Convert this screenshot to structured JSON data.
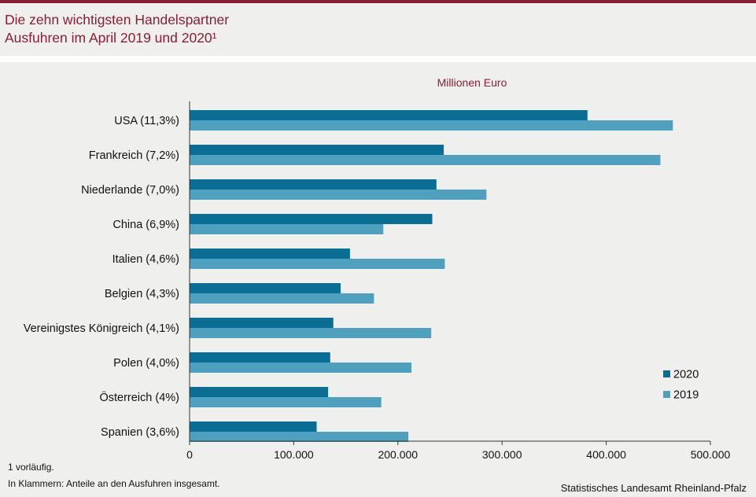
{
  "header": {
    "title_line1": "Die zehn wichtigsten Handelspartner",
    "title_line2": "Ausfuhren im April 2019 und 2020¹"
  },
  "colors": {
    "brand": "#8b1d36",
    "series_2020": "#0a6e94",
    "series_2019": "#4fa0bf",
    "panel_background": "#efefed"
  },
  "chart_data": {
    "type": "bar",
    "orientation": "horizontal",
    "unit_label": "Millionen  Euro",
    "categories": [
      "USA (11,3%)",
      "Frankreich (7,2%)",
      "Niederlande (7,0%)",
      "China (6,9%)",
      "Italien (4,6%)",
      "Belgien (4,3%)",
      "Vereinigstes Königreich (4,1%)",
      "Polen (4,0%)",
      "Österreich (4%)",
      "Spanien (3,6%)"
    ],
    "series": [
      {
        "name": "2020",
        "color": "#0a6e94",
        "values": [
          382000,
          244000,
          237000,
          233000,
          154000,
          145000,
          138000,
          135000,
          133000,
          122000
        ]
      },
      {
        "name": "2019",
        "color": "#4fa0bf",
        "values": [
          464000,
          452000,
          285000,
          186000,
          245000,
          177000,
          232000,
          213000,
          184000,
          210000
        ]
      }
    ],
    "xlim": [
      0,
      500000
    ],
    "xticks": [
      0,
      100000,
      200000,
      300000,
      400000,
      500000
    ],
    "xtick_labels": [
      "0",
      "100.000",
      "200.000",
      "300.000",
      "400.000",
      "500.000"
    ],
    "grid": false,
    "legend_position": "bottom-right"
  },
  "footnotes": {
    "note1": "1 vorläufig.",
    "note2": "In Klammern: Anteile an den Ausfuhren insgesamt."
  },
  "source": "Statistisches Landesamt Rheinland-Pfalz"
}
